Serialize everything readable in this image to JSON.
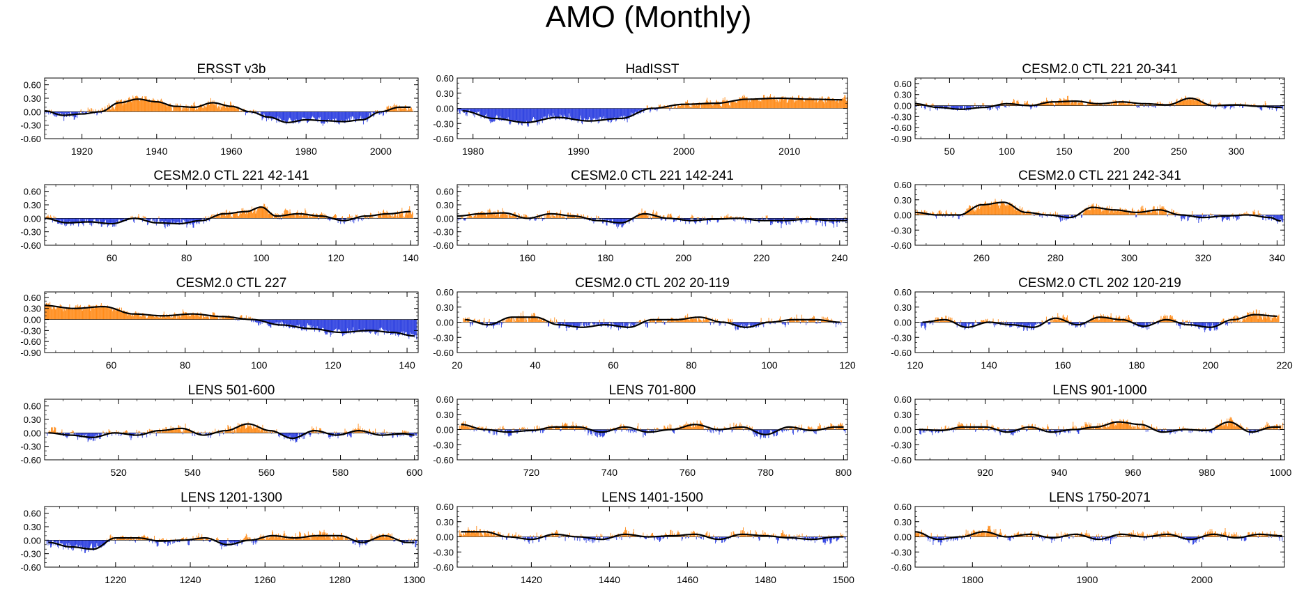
{
  "title": "AMO (Monthly)",
  "colors": {
    "positive": "#ff8c1a",
    "negative": "#2c3fe0",
    "smooth": "#000000",
    "axis": "#000000"
  },
  "chart_data": [
    {
      "type": "bar",
      "title": "ERSST v3b",
      "xlim": [
        1910,
        2010
      ],
      "ylim": [
        -0.6,
        0.75
      ],
      "yticks": [
        "0.60",
        "0.30",
        "0.00",
        "-0.30",
        "-0.60"
      ],
      "xticks": [
        1920,
        1940,
        1960,
        1980,
        2000
      ],
      "xticklabels": [
        "1920",
        "1940",
        "1960",
        "1980",
        "2000"
      ],
      "smooth_x": [
        1910,
        1915,
        1920,
        1925,
        1930,
        1935,
        1940,
        1945,
        1950,
        1955,
        1960,
        1965,
        1970,
        1975,
        1980,
        1985,
        1990,
        1995,
        2000,
        2005,
        2008
      ],
      "smooth_y": [
        0.02,
        -0.08,
        -0.05,
        0.0,
        0.2,
        0.28,
        0.22,
        0.12,
        0.1,
        0.2,
        0.12,
        0.0,
        -0.12,
        -0.24,
        -0.18,
        -0.2,
        -0.22,
        -0.18,
        0.0,
        0.1,
        0.1
      ],
      "noise": 0.11,
      "seed": 11
    },
    {
      "type": "bar",
      "title": "HadISST",
      "xlim": [
        1978.5,
        2015.5
      ],
      "ylim": [
        -0.6,
        0.6
      ],
      "yticks": [
        "0.60",
        "0.30",
        "0.00",
        "-0.30",
        "-0.60"
      ],
      "xticks": [
        1980,
        1990,
        2000,
        2010
      ],
      "xticklabels": [
        "1980",
        "1990",
        "2000",
        "2010"
      ],
      "smooth_x": [
        1979,
        1982,
        1985,
        1988,
        1991,
        1994,
        1997,
        2000,
        2003,
        2006,
        2009,
        2012,
        2015
      ],
      "smooth_y": [
        -0.05,
        -0.2,
        -0.28,
        -0.18,
        -0.25,
        -0.2,
        0.0,
        0.08,
        0.1,
        0.18,
        0.2,
        0.18,
        0.17
      ],
      "noise": 0.09,
      "seed": 23
    },
    {
      "type": "bar",
      "title": "CESM2.0 CTL 221 20-341",
      "xlim": [
        20,
        342
      ],
      "ylim": [
        -0.9,
        0.75
      ],
      "yticks": [
        "0.60",
        "0.30",
        "0.00",
        "-0.30",
        "-0.60",
        "-0.90"
      ],
      "xticks": [
        50,
        100,
        150,
        200,
        250,
        300
      ],
      "xticklabels": [
        "50",
        "100",
        "150",
        "200",
        "250",
        "300"
      ],
      "smooth_x": [
        20,
        40,
        60,
        80,
        100,
        120,
        140,
        160,
        180,
        200,
        220,
        240,
        260,
        280,
        300,
        320,
        340
      ],
      "smooth_y": [
        0.05,
        -0.05,
        -0.1,
        -0.05,
        0.05,
        0.0,
        0.1,
        0.12,
        0.05,
        0.1,
        0.05,
        0.02,
        0.2,
        0.0,
        0.02,
        -0.02,
        -0.05
      ],
      "noise": 0.12,
      "seed": 37
    },
    {
      "type": "bar",
      "title": "CESM2.0 CTL 221 42-141",
      "xlim": [
        42,
        142
      ],
      "ylim": [
        -0.6,
        0.75
      ],
      "yticks": [
        "0.60",
        "0.30",
        "0.00",
        "-0.30",
        "-0.60"
      ],
      "xticks": [
        60,
        80,
        100,
        120,
        140
      ],
      "xticklabels": [
        "60",
        "80",
        "100",
        "120",
        "140"
      ],
      "smooth_x": [
        42,
        48,
        54,
        60,
        66,
        72,
        78,
        84,
        90,
        96,
        100,
        104,
        110,
        116,
        122,
        128,
        134,
        140
      ],
      "smooth_y": [
        0.0,
        -0.1,
        -0.08,
        -0.12,
        0.0,
        -0.1,
        -0.12,
        -0.05,
        0.1,
        0.15,
        0.25,
        0.05,
        0.1,
        0.05,
        -0.05,
        0.05,
        0.1,
        0.15
      ],
      "noise": 0.12,
      "seed": 41
    },
    {
      "type": "bar",
      "title": "CESM2.0 CTL 221 142-241",
      "xlim": [
        142,
        242
      ],
      "ylim": [
        -0.6,
        0.75
      ],
      "yticks": [
        "0.60",
        "0.30",
        "0.00",
        "-0.30",
        "-0.60"
      ],
      "xticks": [
        160,
        180,
        200,
        220,
        240
      ],
      "xticklabels": [
        "160",
        "180",
        "200",
        "220",
        "240"
      ],
      "smooth_x": [
        142,
        148,
        154,
        160,
        166,
        172,
        178,
        184,
        190,
        196,
        202,
        208,
        214,
        220,
        226,
        232,
        238,
        242
      ],
      "smooth_y": [
        0.05,
        0.1,
        0.12,
        0.0,
        0.1,
        0.05,
        -0.05,
        -0.1,
        0.1,
        0.0,
        -0.05,
        -0.02,
        0.0,
        -0.05,
        -0.05,
        -0.02,
        -0.05,
        -0.05
      ],
      "noise": 0.12,
      "seed": 53
    },
    {
      "type": "bar",
      "title": "CESM2.0 CTL 221 242-341",
      "xlim": [
        242,
        342
      ],
      "ylim": [
        -0.6,
        0.6
      ],
      "yticks": [
        "0.60",
        "0.30",
        "0.00",
        "-0.30",
        "-0.60"
      ],
      "xticks": [
        260,
        280,
        300,
        320,
        340
      ],
      "xticklabels": [
        "260",
        "280",
        "300",
        "320",
        "340"
      ],
      "smooth_x": [
        242,
        248,
        254,
        260,
        266,
        272,
        278,
        284,
        290,
        296,
        302,
        308,
        314,
        320,
        326,
        332,
        338,
        341
      ],
      "smooth_y": [
        0.05,
        0.0,
        0.0,
        0.2,
        0.25,
        0.05,
        0.0,
        -0.05,
        0.15,
        0.1,
        0.05,
        0.1,
        0.0,
        -0.05,
        -0.02,
        0.0,
        -0.05,
        -0.12
      ],
      "noise": 0.11,
      "seed": 61
    },
    {
      "type": "bar",
      "title": "CESM2.0 CTL 227",
      "xlim": [
        42,
        143
      ],
      "ylim": [
        -0.9,
        0.75
      ],
      "yticks": [
        "0.60",
        "0.30",
        "0.00",
        "-0.30",
        "-0.60",
        "-0.90"
      ],
      "xticks": [
        60,
        80,
        100,
        120,
        140
      ],
      "xticklabels": [
        "60",
        "80",
        "100",
        "120",
        "140"
      ],
      "smooth_x": [
        42,
        50,
        58,
        66,
        74,
        82,
        90,
        98,
        106,
        114,
        122,
        130,
        136,
        142
      ],
      "smooth_y": [
        0.38,
        0.3,
        0.35,
        0.15,
        0.1,
        0.15,
        0.08,
        0.0,
        -0.15,
        -0.25,
        -0.35,
        -0.3,
        -0.35,
        -0.45
      ],
      "noise": 0.12,
      "seed": 73
    },
    {
      "type": "bar",
      "title": "CESM2.0 CTL 202 20-119",
      "xlim": [
        20,
        120
      ],
      "ylim": [
        -0.6,
        0.6
      ],
      "yticks": [
        "0.60",
        "0.30",
        "0.00",
        "-0.30",
        "-0.60"
      ],
      "xticks": [
        20,
        40,
        60,
        80,
        100,
        120
      ],
      "xticklabels": [
        "20",
        "40",
        "60",
        "80",
        "100",
        "120"
      ],
      "smooth_x": [
        22,
        28,
        34,
        40,
        46,
        52,
        58,
        64,
        70,
        76,
        82,
        88,
        94,
        100,
        106,
        112,
        118
      ],
      "smooth_y": [
        0.05,
        -0.05,
        0.1,
        0.1,
        -0.05,
        -0.1,
        -0.05,
        -0.1,
        0.05,
        0.05,
        0.1,
        0.0,
        -0.1,
        0.0,
        0.05,
        0.05,
        0.0
      ],
      "noise": 0.11,
      "seed": 83
    },
    {
      "type": "bar",
      "title": "CESM2.0 CTL 202 120-219",
      "xlim": [
        120,
        220
      ],
      "ylim": [
        -0.6,
        0.6
      ],
      "yticks": [
        "0.60",
        "0.30",
        "0.00",
        "-0.30",
        "-0.60"
      ],
      "xticks": [
        120,
        140,
        160,
        180,
        200,
        220
      ],
      "xticklabels": [
        "120",
        "140",
        "160",
        "180",
        "200",
        "220"
      ],
      "smooth_x": [
        122,
        128,
        134,
        140,
        146,
        152,
        158,
        164,
        170,
        176,
        182,
        188,
        194,
        200,
        206,
        212,
        218
      ],
      "smooth_y": [
        0.0,
        0.05,
        -0.1,
        0.0,
        -0.05,
        -0.1,
        0.08,
        -0.05,
        0.1,
        0.05,
        -0.08,
        0.05,
        -0.05,
        -0.1,
        0.05,
        0.15,
        0.12
      ],
      "noise": 0.11,
      "seed": 97
    },
    {
      "type": "bar",
      "title": "LENS 501-600",
      "xlim": [
        500,
        601
      ],
      "ylim": [
        -0.6,
        0.75
      ],
      "yticks": [
        "0.60",
        "0.30",
        "0.00",
        "-0.30",
        "-0.60"
      ],
      "xticks": [
        520,
        540,
        560,
        580,
        600
      ],
      "xticklabels": [
        "520",
        "540",
        "560",
        "580",
        "600"
      ],
      "smooth_x": [
        501,
        507,
        513,
        519,
        525,
        531,
        537,
        543,
        549,
        555,
        561,
        567,
        573,
        579,
        585,
        591,
        597,
        600
      ],
      "smooth_y": [
        0.0,
        -0.05,
        -0.1,
        0.0,
        -0.05,
        0.05,
        0.1,
        -0.05,
        0.05,
        0.2,
        0.05,
        -0.12,
        0.05,
        -0.05,
        0.05,
        -0.05,
        -0.02,
        -0.05
      ],
      "noise": 0.12,
      "seed": 103
    },
    {
      "type": "bar",
      "title": "LENS 701-800",
      "xlim": [
        701,
        801
      ],
      "ylim": [
        -0.6,
        0.6
      ],
      "yticks": [
        "0.60",
        "0.30",
        "0.00",
        "-0.30",
        "-0.60"
      ],
      "xticks": [
        720,
        740,
        760,
        780,
        800
      ],
      "xticklabels": [
        "720",
        "740",
        "760",
        "780",
        "800"
      ],
      "smooth_x": [
        702,
        708,
        714,
        720,
        726,
        732,
        738,
        744,
        750,
        756,
        762,
        768,
        774,
        780,
        786,
        792,
        798,
        800
      ],
      "smooth_y": [
        0.1,
        0.0,
        -0.05,
        -0.02,
        0.05,
        0.05,
        -0.05,
        0.05,
        -0.05,
        0.0,
        0.1,
        0.0,
        0.05,
        -0.1,
        0.05,
        -0.02,
        0.05,
        0.05
      ],
      "noise": 0.11,
      "seed": 109
    },
    {
      "type": "bar",
      "title": "LENS 901-1000",
      "xlim": [
        901,
        1001
      ],
      "ylim": [
        -0.6,
        0.6
      ],
      "yticks": [
        "0.60",
        "0.30",
        "0.00",
        "-0.30",
        "-0.60"
      ],
      "xticks": [
        920,
        940,
        960,
        980,
        1000
      ],
      "xticklabels": [
        "920",
        "940",
        "960",
        "980",
        "1000"
      ],
      "smooth_x": [
        902,
        908,
        914,
        920,
        926,
        932,
        938,
        944,
        950,
        956,
        962,
        968,
        974,
        980,
        986,
        992,
        998,
        1000
      ],
      "smooth_y": [
        0.0,
        -0.02,
        0.05,
        0.05,
        -0.05,
        0.05,
        -0.05,
        0.0,
        0.05,
        0.15,
        0.1,
        -0.05,
        0.0,
        -0.02,
        0.15,
        -0.05,
        0.05,
        0.05
      ],
      "noise": 0.11,
      "seed": 127
    },
    {
      "type": "bar",
      "title": "LENS 1201-1300",
      "xlim": [
        1201,
        1301
      ],
      "ylim": [
        -0.6,
        0.75
      ],
      "yticks": [
        "0.60",
        "0.30",
        "0.00",
        "-0.30",
        "-0.60"
      ],
      "xticks": [
        1220,
        1240,
        1260,
        1280,
        1300
      ],
      "xticklabels": [
        "1220",
        "1240",
        "1260",
        "1280",
        "1300"
      ],
      "smooth_x": [
        1202,
        1208,
        1214,
        1220,
        1226,
        1232,
        1238,
        1244,
        1250,
        1256,
        1262,
        1268,
        1274,
        1280,
        1286,
        1292,
        1298,
        1300
      ],
      "smooth_y": [
        -0.05,
        -0.15,
        -0.2,
        0.05,
        0.05,
        -0.02,
        0.0,
        0.05,
        -0.1,
        0.0,
        0.1,
        0.05,
        0.1,
        0.1,
        -0.05,
        0.1,
        -0.05,
        -0.05
      ],
      "noise": 0.12,
      "seed": 131
    },
    {
      "type": "bar",
      "title": "LENS 1401-1500",
      "xlim": [
        1401,
        1501
      ],
      "ylim": [
        -0.6,
        0.6
      ],
      "yticks": [
        "0.60",
        "0.30",
        "0.00",
        "-0.30",
        "-0.60"
      ],
      "xticks": [
        1420,
        1440,
        1460,
        1480,
        1500
      ],
      "xticklabels": [
        "1420",
        "1440",
        "1460",
        "1480",
        "1500"
      ],
      "smooth_x": [
        1402,
        1408,
        1414,
        1420,
        1426,
        1432,
        1438,
        1444,
        1450,
        1456,
        1462,
        1468,
        1474,
        1480,
        1486,
        1492,
        1498,
        1500
      ],
      "smooth_y": [
        0.1,
        0.1,
        0.0,
        -0.05,
        0.05,
        0.0,
        -0.05,
        0.05,
        0.0,
        0.02,
        0.05,
        -0.05,
        0.05,
        0.02,
        -0.02,
        -0.05,
        0.0,
        0.0
      ],
      "noise": 0.11,
      "seed": 137
    },
    {
      "type": "bar",
      "title": "LENS 1750-2071",
      "xlim": [
        1750,
        2072
      ],
      "ylim": [
        -0.6,
        0.6
      ],
      "yticks": [
        "0.60",
        "0.30",
        "0.00",
        "-0.30",
        "-0.60"
      ],
      "xticks": [
        1800,
        1900,
        2000
      ],
      "xticklabels": [
        "1800",
        "1900",
        "2000"
      ],
      "smooth_x": [
        1750,
        1770,
        1790,
        1810,
        1830,
        1850,
        1870,
        1890,
        1910,
        1930,
        1950,
        1970,
        1990,
        2010,
        2030,
        2050,
        2070
      ],
      "smooth_y": [
        0.1,
        -0.05,
        0.0,
        0.1,
        0.0,
        0.05,
        -0.02,
        0.05,
        -0.05,
        0.05,
        0.0,
        0.05,
        -0.05,
        0.05,
        -0.02,
        0.05,
        0.02
      ],
      "noise": 0.12,
      "seed": 149
    }
  ]
}
